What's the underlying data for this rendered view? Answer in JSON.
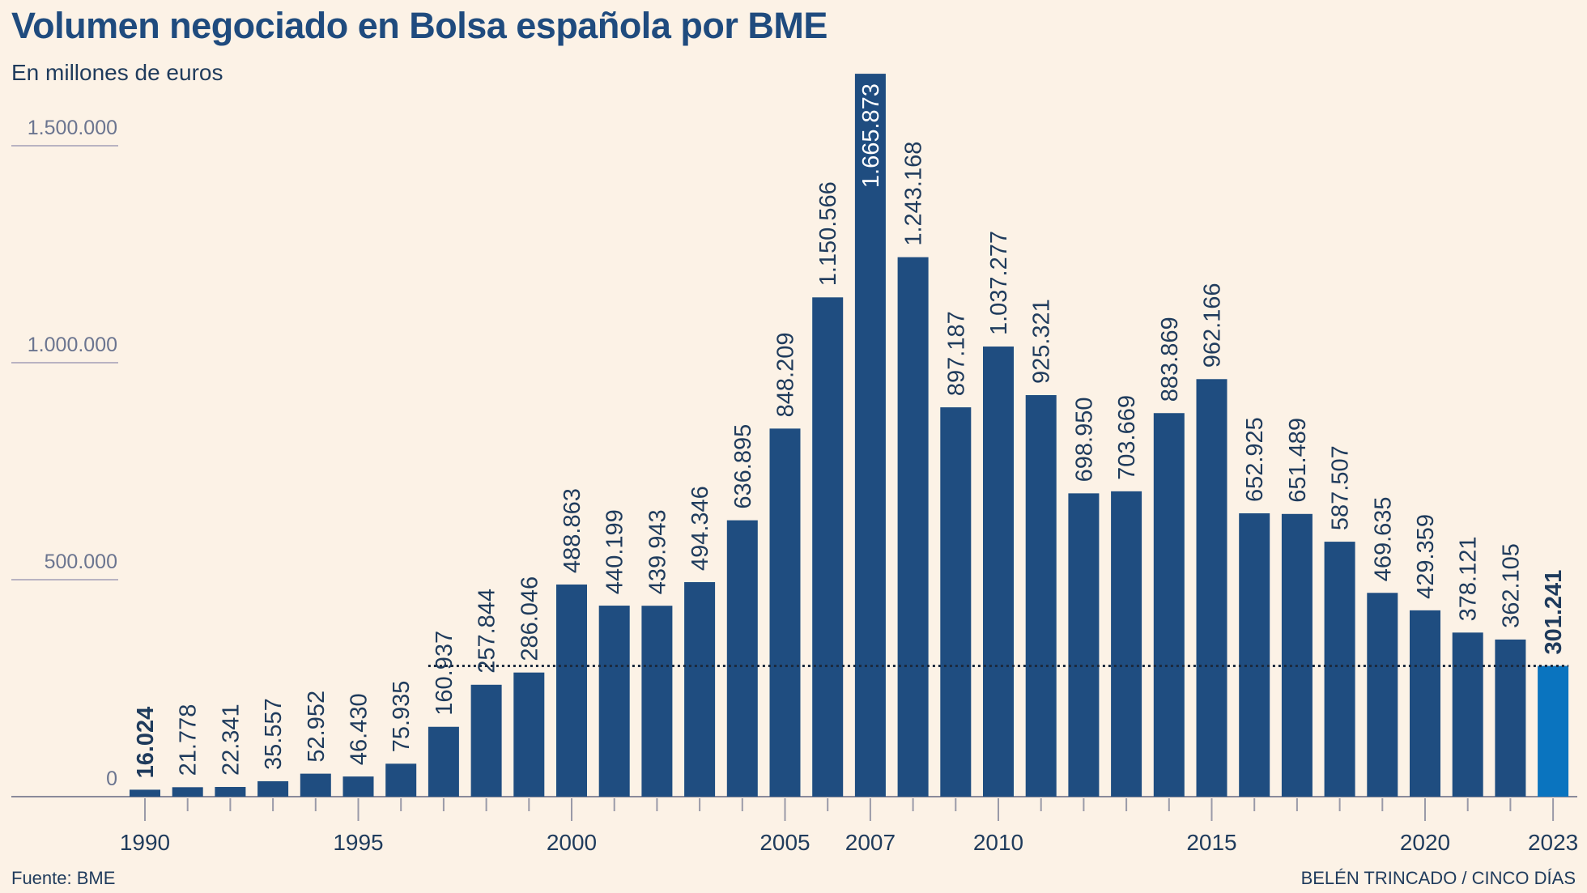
{
  "header": {
    "title": "Volumen negociado en Bolsa española por BME",
    "subtitle": "En millones de euros"
  },
  "footer": {
    "source": "Fuente: BME",
    "credit": "BELÉN TRINCADO / CINCO DÍAS"
  },
  "colors": {
    "bar": "#1f4d80",
    "highlight": "#0a74bf",
    "label": "#1f3b5c",
    "axis_label": "#6b7590",
    "grid": "#b9b3c2"
  },
  "chart_data": {
    "type": "bar",
    "title": "Volumen negociado en Bolsa española por BME",
    "subtitle": "En millones de euros",
    "categories": [
      "1990",
      "1991",
      "1992",
      "1993",
      "1994",
      "1995",
      "1996",
      "1997",
      "1998",
      "1999",
      "2000",
      "2001",
      "2002",
      "2003",
      "2004",
      "2005",
      "2006",
      "2007",
      "2008",
      "2009",
      "2010",
      "2011",
      "2012",
      "2013",
      "2014",
      "2015",
      "2016",
      "2017",
      "2018",
      "2019",
      "2020",
      "2021",
      "2022",
      "2023"
    ],
    "values": [
      16024,
      21778,
      22341,
      35557,
      52952,
      46430,
      75935,
      160937,
      257844,
      286046,
      488863,
      440199,
      439943,
      494346,
      636895,
      848209,
      1150566,
      1665873,
      1243168,
      897187,
      1037277,
      925321,
      698950,
      703669,
      883869,
      962166,
      652925,
      651489,
      587507,
      469635,
      429359,
      378121,
      362105,
      301241
    ],
    "value_labels": [
      "16.024",
      "21.778",
      "22.341",
      "35.557",
      "52.952",
      "46.430",
      "75.935",
      "160.937",
      "257.844",
      "286.046",
      "488.863",
      "440.199",
      "439.943",
      "494.346",
      "636.895",
      "848.209",
      "1.150.566",
      "1.665.873",
      "1.243.168",
      "897.187",
      "1.037.277",
      "925.321",
      "698.950",
      "703.669",
      "883.869",
      "962.166",
      "652.925",
      "651.489",
      "587.507",
      "469.635",
      "429.359",
      "378.121",
      "362.105",
      "301.241"
    ],
    "x_tick_labels": [
      "1990",
      "1995",
      "2000",
      "2005",
      "2007",
      "2010",
      "2015",
      "2020",
      "2023"
    ],
    "y_ticks": [
      0,
      500000,
      1000000,
      1500000
    ],
    "y_tick_labels": [
      "0",
      "500.000",
      "1.000.000",
      "1.500.000"
    ],
    "ylim": [
      0,
      1560000
    ],
    "reference_line": {
      "value": 301241,
      "style": "dotted",
      "from_category": "1997"
    },
    "highlight": {
      "category": "2023"
    },
    "grid": "horizontal segments at left",
    "legend": "none"
  }
}
